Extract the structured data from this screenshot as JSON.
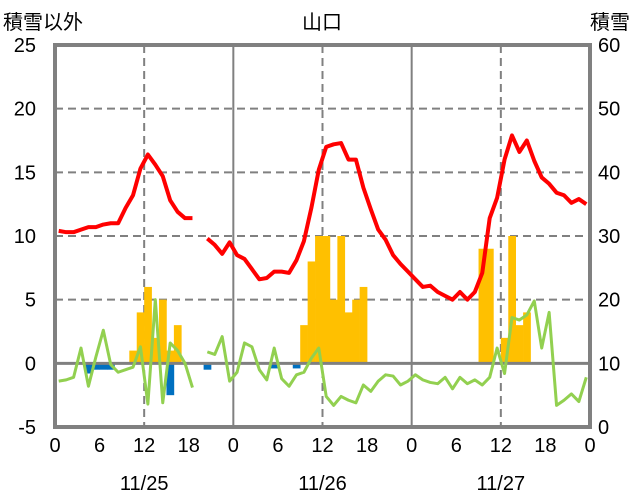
{
  "chart_data": {
    "type": "bar+line",
    "title": "山口",
    "left_axis_label": "積雪以外",
    "right_axis_label": "積雪",
    "left_ylim": [
      -5,
      25
    ],
    "left_ticks": [
      "-5",
      "0",
      "5",
      "10",
      "15",
      "20",
      "25"
    ],
    "right_ylim": [
      0,
      60
    ],
    "right_ticks": [
      "0",
      "10",
      "20",
      "30",
      "40",
      "50",
      "60"
    ],
    "x_hours": 72,
    "x_tick_labels": [
      "0",
      "6",
      "12",
      "18",
      "0",
      "6",
      "12",
      "18",
      "0",
      "6",
      "12",
      "18",
      "0"
    ],
    "day_labels": [
      "11/25",
      "11/26",
      "11/27"
    ],
    "grid": true,
    "series": [
      {
        "name": "temperature",
        "type": "line",
        "axis": "left",
        "color": "#FF0000",
        "values": [
          10.4,
          10.3,
          10.3,
          10.5,
          10.7,
          10.7,
          10.9,
          11.0,
          11.0,
          12.2,
          13.2,
          15.3,
          16.4,
          15.6,
          14.7,
          12.8,
          11.9,
          11.4,
          11.4,
          null,
          9.8,
          9.3,
          8.6,
          9.5,
          8.5,
          8.2,
          7.4,
          6.6,
          6.7,
          7.2,
          7.2,
          7.1,
          8.1,
          9.6,
          12.2,
          15.2,
          17.0,
          17.2,
          17.3,
          16.0,
          16.0,
          13.8,
          12.1,
          10.5,
          9.7,
          8.5,
          7.8,
          7.2,
          6.6,
          6.0,
          6.1,
          5.6,
          5.3,
          5.0,
          5.6,
          5.0,
          5.6,
          7.1,
          11.4,
          13.0,
          16.0,
          17.9,
          16.6,
          17.5,
          15.9,
          14.6,
          14.1,
          13.4,
          13.2,
          12.6,
          12.9,
          12.5
        ]
      },
      {
        "name": "change",
        "type": "line",
        "axis": "left",
        "color": "#92D050",
        "values": [
          -1.4,
          -1.3,
          -1.1,
          1.2,
          -1.8,
          0.5,
          2.6,
          -0.1,
          -0.7,
          -0.5,
          -0.3,
          1.3,
          -3.2,
          5.0,
          -3.1,
          1.6,
          1.0,
          0.0,
          -1.9,
          null,
          0.9,
          0.7,
          2.1,
          -1.4,
          -0.7,
          1.6,
          1.3,
          -0.5,
          -1.3,
          1.2,
          -1.2,
          -1.8,
          -0.9,
          -0.7,
          0.4,
          1.2,
          -2.6,
          -3.3,
          -2.6,
          -2.9,
          -3.1,
          -1.7,
          -2.2,
          -1.4,
          -0.9,
          -1.0,
          -1.7,
          -1.4,
          -0.9,
          -1.3,
          -1.5,
          -1.6,
          -1.1,
          -2.0,
          -1.1,
          -1.6,
          -1.3,
          -1.7,
          -1.1,
          1.2,
          -0.8,
          3.6,
          3.4,
          3.8,
          4.9,
          1.2,
          4.0,
          -3.3,
          -2.9,
          -2.4,
          -3.0,
          -1.1
        ]
      },
      {
        "name": "snowfall",
        "type": "bar",
        "axis": "left",
        "color": "#FFC000",
        "values": [
          0,
          0,
          0,
          0,
          0,
          0,
          0,
          0,
          0,
          0,
          1,
          4,
          6,
          2,
          5,
          1,
          3,
          0,
          0,
          0,
          0,
          0,
          0,
          0,
          0,
          0,
          0,
          0,
          0,
          0,
          0,
          0,
          0,
          3,
          8,
          10,
          10,
          5,
          10,
          4,
          5,
          6,
          0,
          0,
          0,
          0,
          0,
          0,
          0,
          0,
          0,
          0,
          0,
          0,
          0,
          0,
          0,
          9,
          9,
          0,
          2,
          10,
          3,
          4,
          0,
          0,
          0,
          0,
          0,
          0,
          0,
          0
        ]
      },
      {
        "name": "negative",
        "type": "bar",
        "axis": "left",
        "color": "#0070C0",
        "values": [
          0,
          0,
          0,
          0,
          -0.8,
          -0.5,
          -0.5,
          -0.5,
          0,
          0,
          0,
          0,
          0,
          0,
          0,
          -2.5,
          0,
          0,
          0,
          0,
          -0.5,
          0,
          0,
          0,
          0,
          0,
          0,
          0,
          0,
          -0.4,
          0,
          0,
          -0.4,
          0,
          0,
          0,
          0,
          0,
          0,
          0,
          0,
          0,
          0,
          0,
          0,
          0,
          0,
          0,
          0,
          0,
          0,
          0,
          0,
          0,
          0,
          0,
          0,
          0,
          0,
          0,
          0,
          0,
          0,
          0,
          0,
          0,
          0,
          0,
          0,
          0,
          0,
          0
        ]
      },
      {
        "name": "snow_depth",
        "type": "line",
        "axis": "right",
        "color": "#7030A0",
        "values": [
          0,
          0,
          0,
          0,
          0,
          0,
          0,
          0,
          0,
          0,
          0,
          0,
          0,
          0,
          0,
          0,
          0,
          0,
          0,
          null,
          0,
          0,
          0,
          0,
          0,
          0,
          0,
          0,
          0,
          0,
          0,
          0,
          0,
          0,
          0,
          0,
          0,
          0,
          0,
          0,
          0,
          0,
          0,
          0,
          0,
          0,
          0,
          0,
          0,
          0,
          0,
          0,
          0,
          0,
          0,
          0,
          0,
          0,
          0,
          0,
          0,
          0,
          0,
          0,
          0,
          0,
          0,
          0,
          0,
          0,
          0,
          0
        ]
      }
    ]
  }
}
